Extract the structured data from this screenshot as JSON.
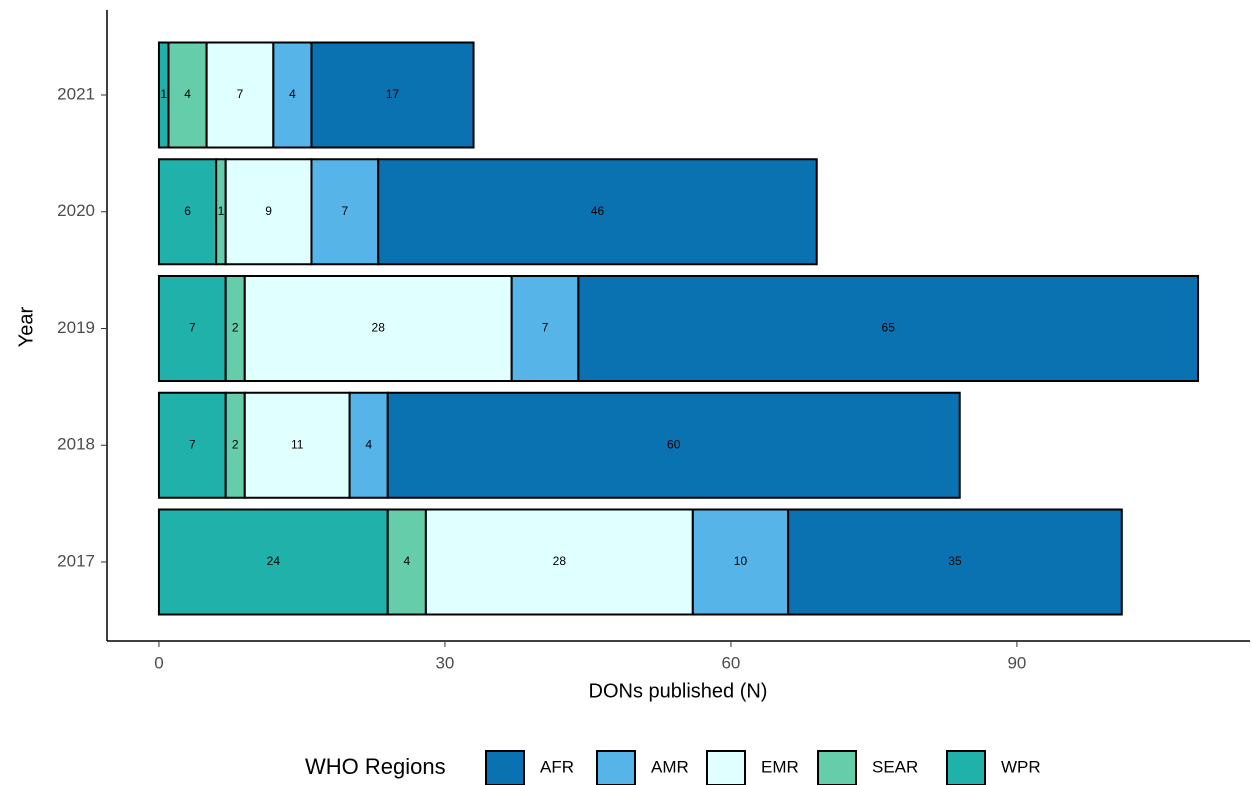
{
  "chart_data": {
    "type": "stacked_barh",
    "x_label": "DONs published (N)",
    "y_label": "Year",
    "categories": [
      "2017",
      "2018",
      "2019",
      "2020",
      "2021"
    ],
    "legend_title": "WHO Regions",
    "legend_position": "bottom",
    "series": [
      {
        "name": "AFR",
        "color": "#0a72b0",
        "values": [
          35,
          60,
          65,
          46,
          17
        ]
      },
      {
        "name": "AMR",
        "color": "#56b4e9",
        "values": [
          10,
          4,
          7,
          7,
          4
        ]
      },
      {
        "name": "EMR",
        "color": "#e0ffff",
        "values": [
          28,
          11,
          28,
          9,
          7
        ]
      },
      {
        "name": "SEAR",
        "color": "#66cdaa",
        "values": [
          4,
          2,
          2,
          1,
          4
        ]
      },
      {
        "name": "WPR",
        "color": "#20b2aa",
        "values": [
          24,
          7,
          7,
          6,
          1
        ]
      }
    ],
    "xlim": [
      -5.45,
      114.45
    ],
    "xticks": [
      0,
      30,
      60,
      90
    ]
  }
}
